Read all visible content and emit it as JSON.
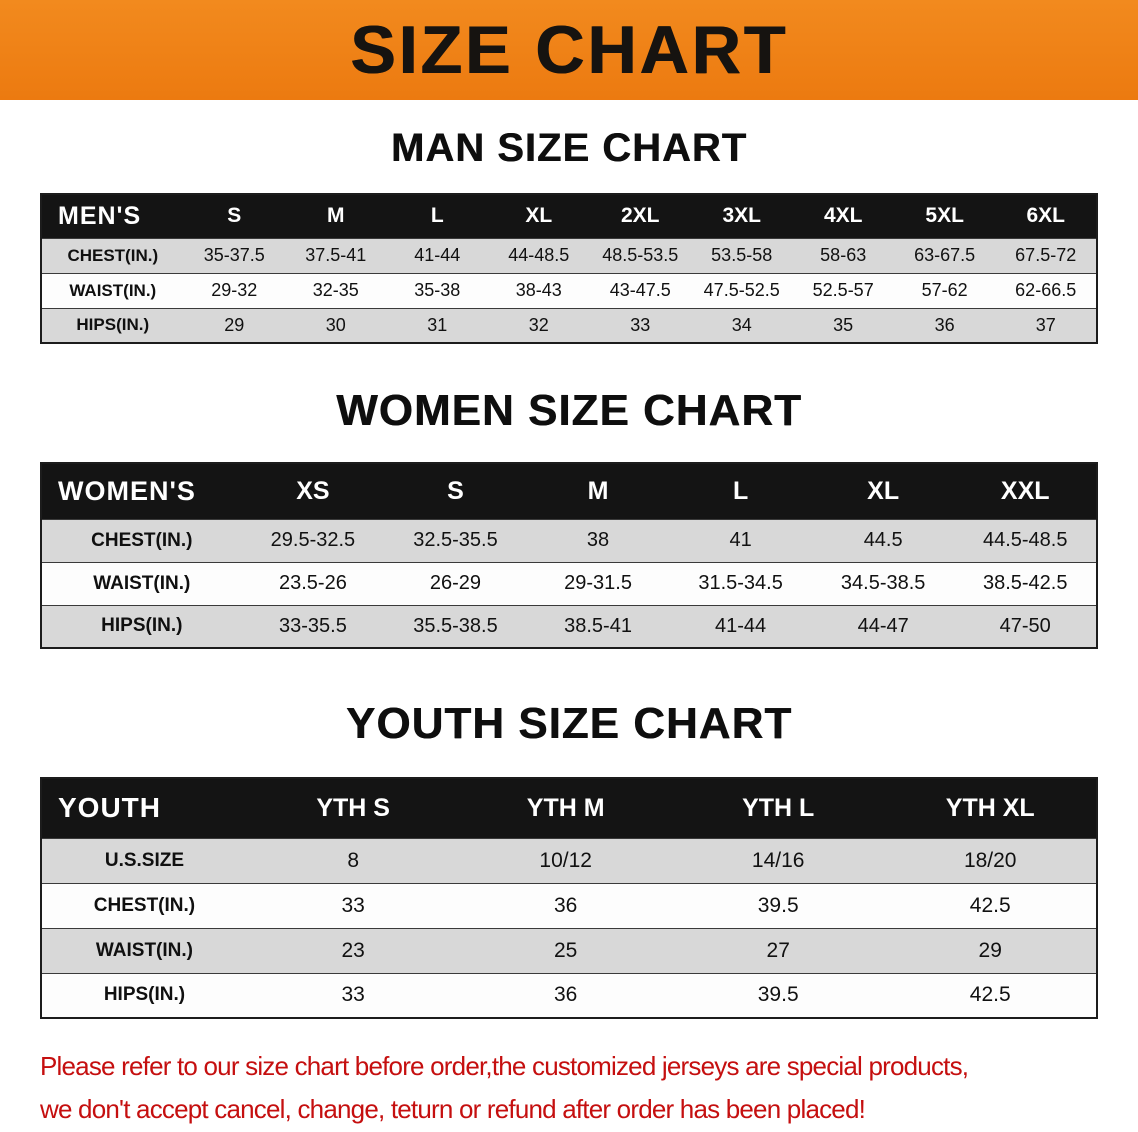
{
  "banner": {
    "title": "SIZE CHART"
  },
  "sections": [
    {
      "id": "men",
      "heading": "MAN SIZE CHART",
      "table": {
        "header": [
          "MEN'S",
          "S",
          "M",
          "L",
          "XL",
          "2XL",
          "3XL",
          "4XL",
          "5XL",
          "6XL"
        ],
        "rows": [
          [
            "CHEST(IN.)",
            "35-37.5",
            "37.5-41",
            "41-44",
            "44-48.5",
            "48.5-53.5",
            "53.5-58",
            "58-63",
            "63-67.5",
            "67.5-72"
          ],
          [
            "WAIST(IN.)",
            "29-32",
            "32-35",
            "35-38",
            "38-43",
            "43-47.5",
            "47.5-52.5",
            "52.5-57",
            "57-62",
            "62-66.5"
          ],
          [
            "HIPS(IN.)",
            "29",
            "30",
            "31",
            "32",
            "33",
            "34",
            "35",
            "36",
            "37"
          ]
        ]
      }
    },
    {
      "id": "women",
      "heading": "WOMEN SIZE CHART",
      "table": {
        "header": [
          "WOMEN'S",
          "XS",
          "S",
          "M",
          "L",
          "XL",
          "XXL"
        ],
        "rows": [
          [
            "CHEST(IN.)",
            "29.5-32.5",
            "32.5-35.5",
            "38",
            "41",
            "44.5",
            "44.5-48.5"
          ],
          [
            "WAIST(IN.)",
            "23.5-26",
            "26-29",
            "29-31.5",
            "31.5-34.5",
            "34.5-38.5",
            "38.5-42.5"
          ],
          [
            "HIPS(IN.)",
            "33-35.5",
            "35.5-38.5",
            "38.5-41",
            "41-44",
            "44-47",
            "47-50"
          ]
        ]
      }
    },
    {
      "id": "youth",
      "heading": "YOUTH SIZE CHART",
      "table": {
        "header": [
          "YOUTH",
          "YTH S",
          "YTH M",
          "YTH L",
          "YTH XL"
        ],
        "rows": [
          [
            "U.S.SIZE",
            "8",
            "10/12",
            "14/16",
            "18/20"
          ],
          [
            "CHEST(IN.)",
            "33",
            "36",
            "39.5",
            "42.5"
          ],
          [
            "WAIST(IN.)",
            "23",
            "25",
            "27",
            "29"
          ],
          [
            "HIPS(IN.)",
            "33",
            "36",
            "39.5",
            "42.5"
          ]
        ]
      }
    }
  ],
  "disclaimer": {
    "line1": "Please refer to our size chart before order,the customized jerseys are special products,",
    "line2": "we don't accept cancel, change, teturn or refund after order has been placed!"
  },
  "colors": {
    "banner_bg": "#EE7D14",
    "table_header_bg": "#141414",
    "shade_row_bg": "#d8d8d8",
    "disclaimer_text": "#c50f0f"
  }
}
